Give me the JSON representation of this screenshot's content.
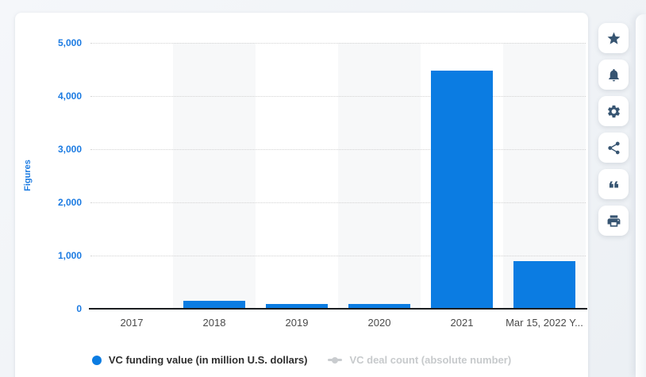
{
  "chart_data": {
    "type": "bar",
    "title": "",
    "categories": [
      "2017",
      "2018",
      "2019",
      "2020",
      "2021",
      "Mar 15, 2022 Y..."
    ],
    "series": [
      {
        "name": "VC funding value (in million U.S. dollars)",
        "values": [
          0,
          150,
          95,
          95,
          4480,
          900
        ],
        "color": "#0b7ce2",
        "visible": true
      },
      {
        "name": "VC deal count (absolute number)",
        "values": [],
        "color": "#c9cccf",
        "visible": false
      }
    ],
    "xlabel": "",
    "ylabel": "Figures",
    "ylim": [
      0,
      5000
    ],
    "yticks": [
      "5,000",
      "4,000",
      "3,000",
      "2,000",
      "1,000",
      "0"
    ],
    "grid": "horizontal-dotted",
    "plot_bands": "alternating-columns",
    "legend_position": "bottom"
  },
  "legend": {
    "items": [
      {
        "label": "VC funding value (in million U.S. dollars)",
        "marker": "circle",
        "color": "#0b7ce2",
        "enabled": true
      },
      {
        "label": "VC deal count (absolute number)",
        "marker": "line-dot",
        "color": "#c9cccf",
        "enabled": false
      }
    ]
  },
  "sidebar": {
    "buttons": [
      {
        "icon": "star"
      },
      {
        "icon": "bell"
      },
      {
        "icon": "gear"
      },
      {
        "icon": "share"
      },
      {
        "icon": "quote"
      },
      {
        "icon": "printer"
      }
    ]
  },
  "colors": {
    "bar": "#0b7ce2",
    "y_axis_text": "#1c7be2",
    "x_axis_text": "#4a4a4a",
    "axis_line": "#1b1e21",
    "band": "#f7f8f9",
    "gridline": "#d2d2d2",
    "legend_active_text": "#2e2e2e",
    "legend_disabled_text": "#c7cacc",
    "icon": "#375572",
    "page_bg": "#eef1f5",
    "card_bg": "#ffffff"
  }
}
